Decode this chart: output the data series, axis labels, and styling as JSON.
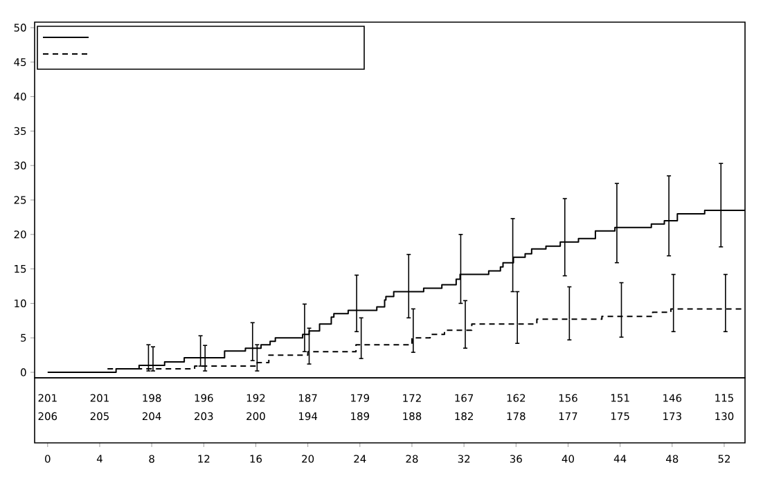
{
  "chart_data": [
    {
      "type": "step",
      "xlim": [
        -1,
        53.6
      ],
      "ylim": [
        -0.8,
        50.8
      ],
      "xticks": [
        0,
        4,
        8,
        12,
        16,
        20,
        24,
        28,
        32,
        36,
        40,
        44,
        48,
        52
      ],
      "yticks": [
        0,
        5,
        10,
        15,
        20,
        25,
        30,
        35,
        40,
        45,
        50
      ],
      "grid": false,
      "series": [
        {
          "type": "step",
          "color": "#000000",
          "line_style": "solid",
          "x": [
            0,
            5.26,
            7.03,
            7.75,
            8.99,
            10.5,
            11.75,
            13.6,
            15.2,
            15.75,
            16.4,
            17.1,
            17.5,
            19.6,
            19.75,
            20.1,
            20.9,
            21.8,
            22.0,
            23.1,
            23.75,
            25.3,
            25.9,
            26.0,
            26.6,
            27.75,
            28.9,
            30.3,
            31.4,
            31.7,
            31.75,
            33.9,
            34.8,
            35.0,
            35.75,
            35.8,
            36.7,
            37.2,
            38.3,
            39.4,
            39.75,
            40.8,
            42.1,
            43.6,
            43.75,
            46.4,
            47.4,
            47.75,
            48.4,
            50.5,
            51.75,
            53.6
          ],
          "values": [
            0,
            0.5,
            1.0,
            1.0,
            1.5,
            2.1,
            2.1,
            3.1,
            3.5,
            3.5,
            4.0,
            4.5,
            5.0,
            5.5,
            5.5,
            6.0,
            7.0,
            8.0,
            8.5,
            9.0,
            9.0,
            9.5,
            10.5,
            11.0,
            11.7,
            11.7,
            12.2,
            12.7,
            13.5,
            14.2,
            14.2,
            14.7,
            15.3,
            15.9,
            15.9,
            16.7,
            17.2,
            17.9,
            18.3,
            18.9,
            18.9,
            19.4,
            20.5,
            21.0,
            21.0,
            21.5,
            22.0,
            22.0,
            23.0,
            23.5,
            23.5,
            23.5
          ],
          "errors": [
            null,
            null,
            null,
            [
              0.2,
              4.0
            ],
            null,
            null,
            [
              0.9,
              5.3
            ],
            null,
            null,
            [
              1.7,
              7.2
            ],
            null,
            null,
            null,
            null,
            [
              3.0,
              9.9
            ],
            null,
            null,
            null,
            null,
            null,
            [
              5.9,
              14.1
            ],
            null,
            null,
            null,
            null,
            [
              7.9,
              17.1
            ],
            null,
            null,
            null,
            null,
            [
              10.0,
              20.0
            ],
            null,
            null,
            null,
            [
              11.7,
              22.3
            ],
            null,
            null,
            null,
            null,
            null,
            [
              14.0,
              25.2
            ],
            null,
            null,
            null,
            [
              15.9,
              27.4
            ],
            null,
            null,
            [
              16.9,
              28.5
            ],
            null,
            null,
            [
              18.2,
              30.3
            ],
            null
          ]
        },
        {
          "type": "step",
          "color": "#000000",
          "line_style": "dashed",
          "x": [
            4.6,
            8.1,
            11.3,
            12.1,
            16.1,
            17.0,
            20.0,
            20.1,
            23.7,
            24.1,
            28.0,
            28.1,
            29.4,
            30.5,
            32.1,
            32.6,
            36.1,
            37.6,
            40.1,
            42.6,
            44.1,
            46.5,
            47.9,
            48.1,
            52.1,
            53.6
          ],
          "values": [
            0.5,
            0.5,
            0.9,
            0.9,
            1.4,
            2.5,
            3.0,
            3.0,
            4.0,
            4.0,
            5.0,
            5.0,
            5.5,
            6.1,
            6.1,
            7.0,
            7.0,
            7.7,
            7.7,
            8.1,
            8.1,
            8.7,
            9.2,
            9.2,
            9.2,
            9.2
          ],
          "errors": [
            null,
            [
              0.2,
              3.7
            ],
            null,
            [
              0.2,
              3.9
            ],
            [
              0.2,
              4.0
            ],
            null,
            null,
            [
              1.2,
              6.4
            ],
            null,
            [
              2.0,
              7.9
            ],
            null,
            [
              2.9,
              9.2
            ],
            null,
            null,
            [
              3.5,
              10.4
            ],
            null,
            [
              4.2,
              11.7
            ],
            null,
            [
              4.7,
              12.4
            ],
            null,
            [
              5.1,
              13.0
            ],
            null,
            null,
            [
              5.9,
              14.2
            ],
            [
              5.9,
              14.2
            ],
            null
          ]
        }
      ]
    },
    {
      "type": "heatmap",
      "data_labels": true,
      "categories": [
        null,
        null,
        null,
        null,
        null,
        null,
        null,
        null,
        null,
        null,
        null,
        null,
        null,
        null
      ],
      "y_categories": [
        null,
        null
      ],
      "cells": [
        [
          201,
          201,
          198,
          196,
          192,
          187,
          179,
          172,
          167,
          162,
          156,
          151,
          146,
          115
        ],
        [
          206,
          205,
          204,
          203,
          200,
          194,
          189,
          188,
          182,
          178,
          177,
          175,
          173,
          130
        ]
      ]
    }
  ]
}
